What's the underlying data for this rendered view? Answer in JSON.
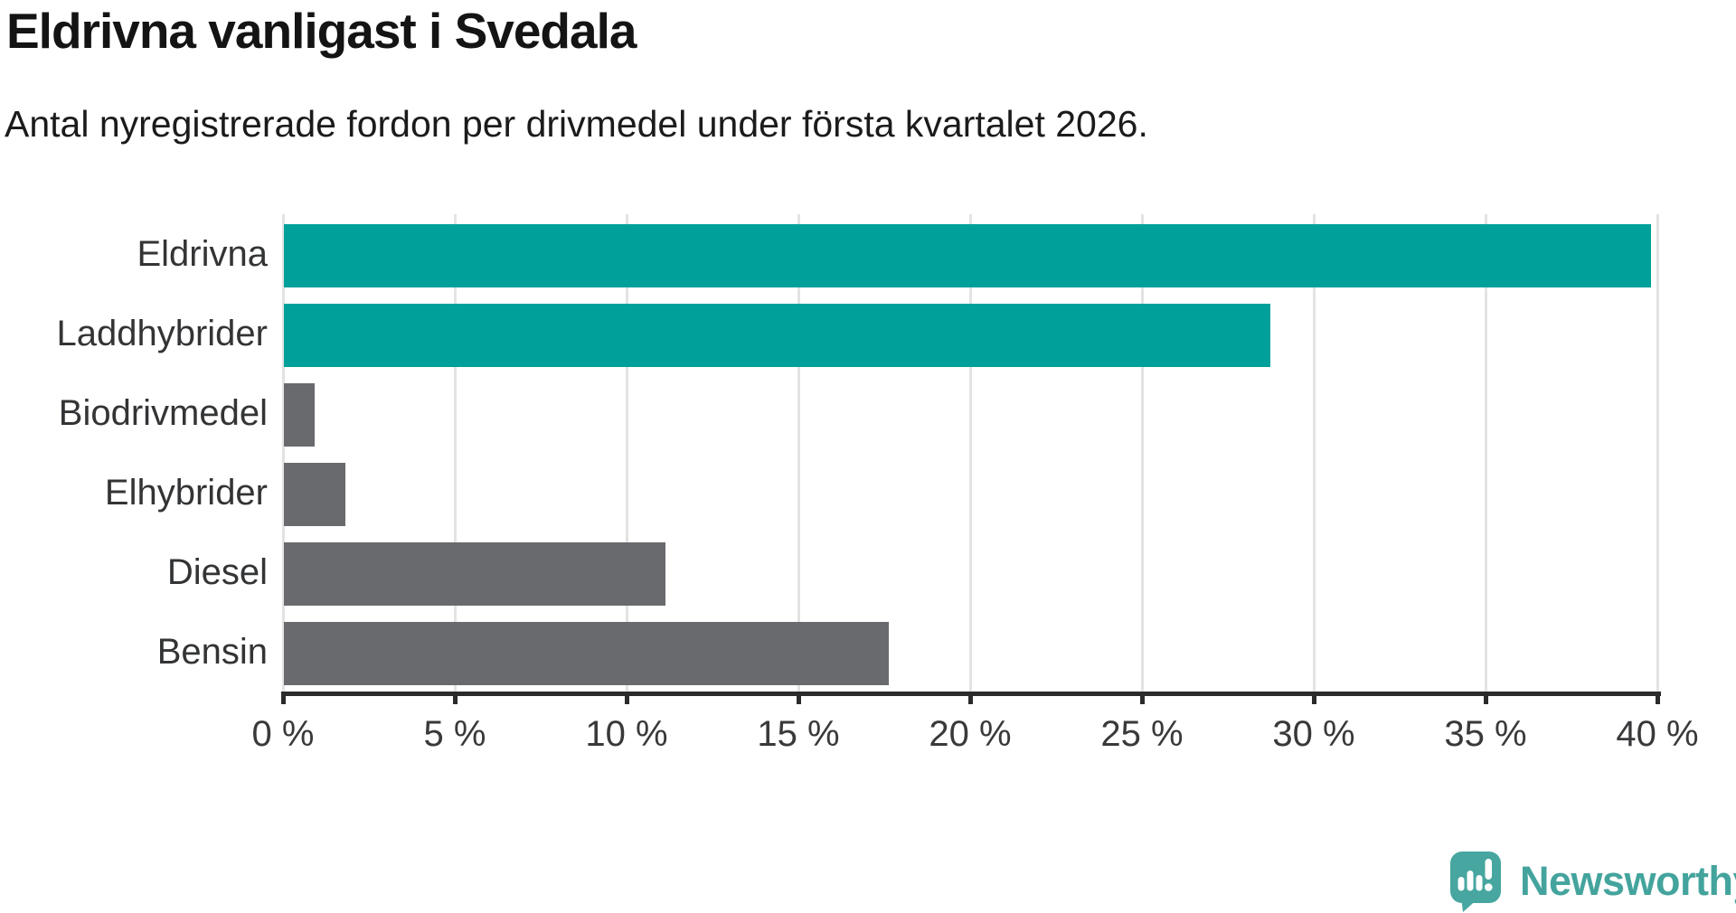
{
  "header": {
    "title": "Eldrivna vanligast i Svedala",
    "subtitle": "Antal nyregistrerade fordon per drivmedel under första kvartalet 2026."
  },
  "chart_data": {
    "type": "bar",
    "orientation": "horizontal",
    "title": "Eldrivna vanligast i Svedala",
    "subtitle": "Antal nyregistrerade fordon per drivmedel under första kvartalet 2026.",
    "categories": [
      "Eldrivna",
      "Laddhybrider",
      "Biodrivmedel",
      "Elhybrider",
      "Diesel",
      "Bensin"
    ],
    "values": [
      39.8,
      28.7,
      0.9,
      1.8,
      11.1,
      17.6
    ],
    "unit": "%",
    "bar_colors": [
      "#00a09a",
      "#00a09a",
      "#696a6e",
      "#696a6e",
      "#696a6e",
      "#696a6e"
    ],
    "highlight_color": "#00a09a",
    "default_color": "#696a6e",
    "xlim": [
      0,
      40
    ],
    "xticks": [
      0,
      5,
      10,
      15,
      20,
      25,
      30,
      35,
      40
    ],
    "xtick_labels": [
      "0 %",
      "5 %",
      "10 %",
      "15 %",
      "20 %",
      "25 %",
      "30 %",
      "35 %",
      "40 %"
    ],
    "grid": true,
    "gridline_color": "#e3e3e3",
    "axis_color": "#2b2b2b",
    "label_color": "#38393b",
    "legend": "none"
  },
  "footer": {
    "brand": "Newsworthy",
    "brand_color": "#44a49d",
    "logo_icon": "bar-chart-speech-bubble"
  }
}
